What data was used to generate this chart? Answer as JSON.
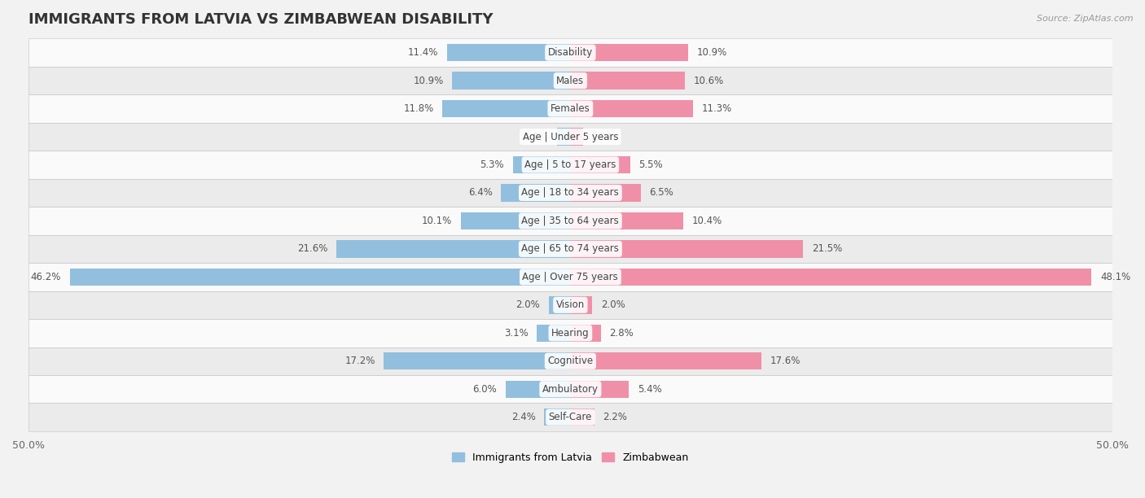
{
  "title": "IMMIGRANTS FROM LATVIA VS ZIMBABWEAN DISABILITY",
  "source": "Source: ZipAtlas.com",
  "categories": [
    "Disability",
    "Males",
    "Females",
    "Age | Under 5 years",
    "Age | 5 to 17 years",
    "Age | 18 to 34 years",
    "Age | 35 to 64 years",
    "Age | 65 to 74 years",
    "Age | Over 75 years",
    "Vision",
    "Hearing",
    "Cognitive",
    "Ambulatory",
    "Self-Care"
  ],
  "latvia_values": [
    11.4,
    10.9,
    11.8,
    1.2,
    5.3,
    6.4,
    10.1,
    21.6,
    46.2,
    2.0,
    3.1,
    17.2,
    6.0,
    2.4
  ],
  "zimbabwe_values": [
    10.9,
    10.6,
    11.3,
    1.2,
    5.5,
    6.5,
    10.4,
    21.5,
    48.1,
    2.0,
    2.8,
    17.6,
    5.4,
    2.2
  ],
  "latvia_color": "#92bfde",
  "zimbabwe_color": "#f090a8",
  "axis_limit": 50.0,
  "bg_color": "#f2f2f2",
  "row_bg_light": "#fafafa",
  "row_bg_dark": "#ebebeb",
  "title_fontsize": 13,
  "label_fontsize": 8.5,
  "tick_fontsize": 9,
  "legend_fontsize": 9,
  "value_fontsize": 8.5
}
